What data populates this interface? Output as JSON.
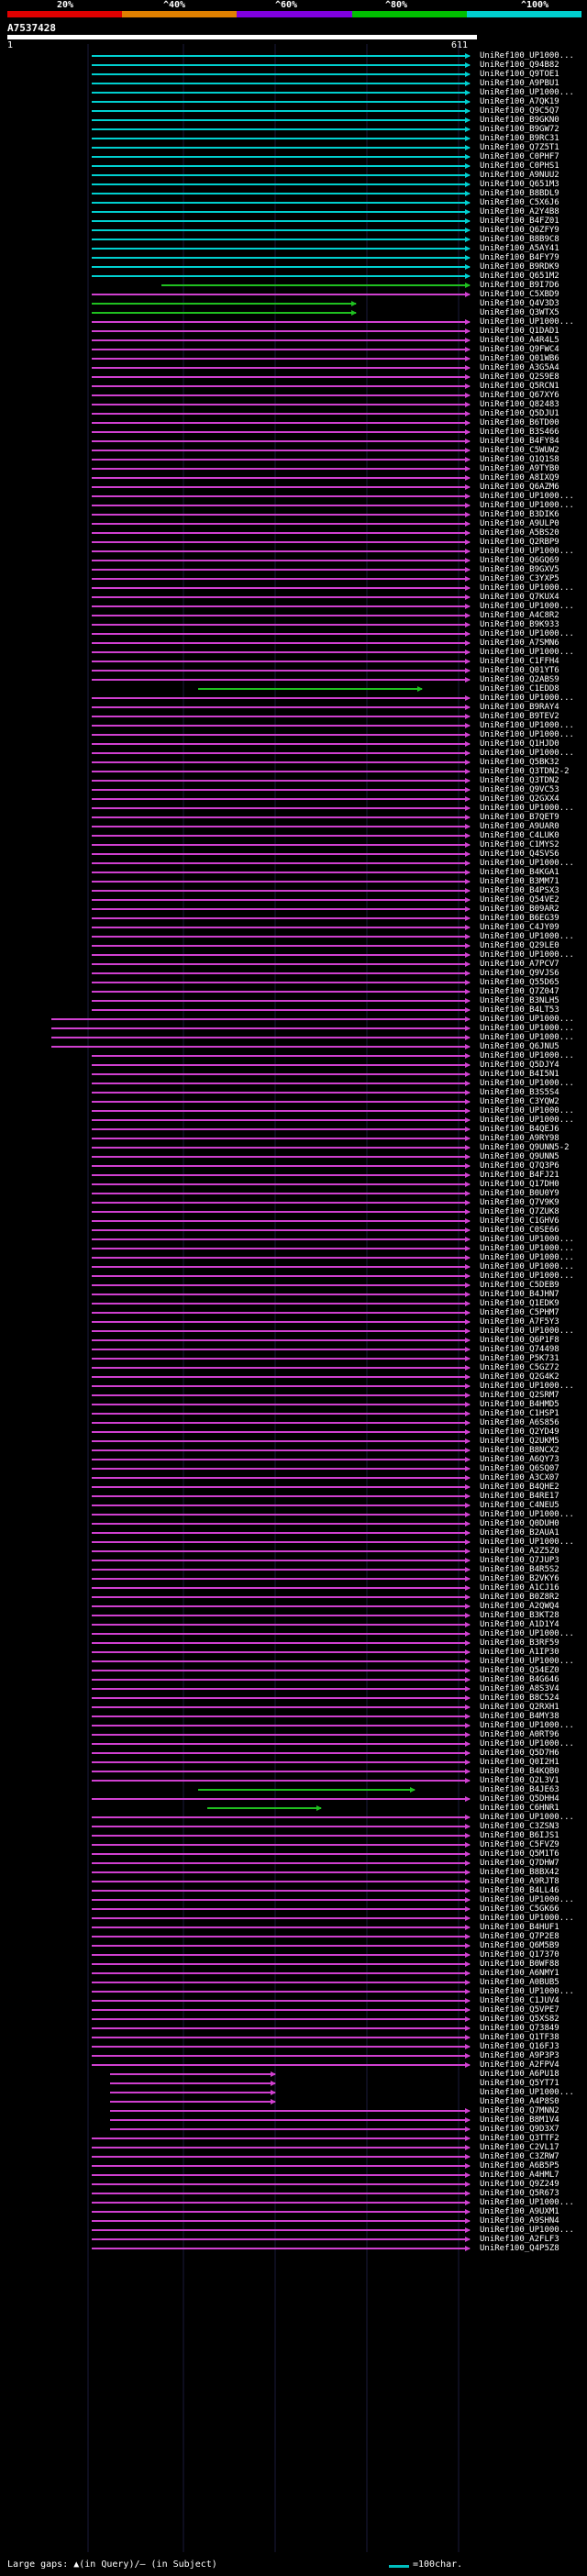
{
  "scale": {
    "labels": [
      "20%",
      "^40%",
      "^60%",
      "^80%",
      "^100%"
    ],
    "colors": [
      "#e00000",
      "#e08000",
      "#8000e0",
      "#00c000",
      "#00d0d0"
    ]
  },
  "query": {
    "accession": "A7537428",
    "start": "1",
    "end": "611"
  },
  "legend": {
    "gaps": "Large gaps: ▲(in Query)/— (in Subject)",
    "scale": "=100char."
  },
  "hits": [
    "UniRef100_UP1000...",
    "UniRef100_Q94B82",
    "UniRef100_Q9TOE1",
    "UniRef100_A9PBU1",
    "UniRef100_UP1000...",
    "UniRef100_A7QK19",
    "UniRef100_Q9C5Q7",
    "UniRef100_B9GKN0",
    "UniRef100_B9GW72",
    "UniRef100_B9RC31",
    "UniRef100_Q7Z5T1",
    "UniRef100_C0PHF7",
    "UniRef100_C0PHS1",
    "UniRef100_A9NUU2",
    "UniRef100_Q651M3",
    "UniRef100_B8BDL9",
    "UniRef100_C5X6J6",
    "UniRef100_A2Y4B8",
    "UniRef100_B4FZ01",
    "UniRef100_Q6ZFY9",
    "UniRef100_B8B9C8",
    "UniRef100_A5AY41",
    "UniRef100_B4FY79",
    "UniRef100_B9RDK9",
    "UniRef100_Q651M2",
    "UniRef100_B9I7D6",
    "UniRef100_C5XBD9",
    "UniRef100_Q4V3D3",
    "UniRef100_Q3WTX5",
    "UniRef100_UP1000...",
    "UniRef100_Q1DAD1",
    "UniRef100_A4R4L5",
    "UniRef100_Q9FWC4",
    "UniRef100_Q01WB6",
    "UniRef100_A3G5A4",
    "UniRef100_Q2S9E8",
    "UniRef100_Q5RCN1",
    "UniRef100_Q67XY6",
    "UniRef100_Q82483",
    "UniRef100_Q5DJU1",
    "UniRef100_B6TD00",
    "UniRef100_B3S466",
    "UniRef100_B4FY84",
    "UniRef100_C5WUW2",
    "UniRef100_Q1Q1S8",
    "UniRef100_A9TYB0",
    "UniRef100_A8IXQ9",
    "UniRef100_Q6AZM6",
    "UniRef100_UP1000...",
    "UniRef100_UP1000...",
    "UniRef100_B3DIK6",
    "UniRef100_A9ULP0",
    "UniRef100_A5BS20",
    "UniRef100_Q2RBP9",
    "UniRef100_UP1000...",
    "UniRef100_Q6GQ69",
    "UniRef100_B9GXV5",
    "UniRef100_C3YXP5",
    "UniRef100_UP1000...",
    "UniRef100_Q7KUX4",
    "UniRef100_UP1000...",
    "UniRef100_A4C8R2",
    "UniRef100_B9K933",
    "UniRef100_UP1000...",
    "UniRef100_A7SMN6",
    "UniRef100_UP1000...",
    "UniRef100_C1FFH4",
    "UniRef100_Q01YT6",
    "UniRef100_Q2ABS9",
    "UniRef100_C1EDD8",
    "UniRef100_UP1000...",
    "UniRef100_B9RAY4",
    "UniRef100_B9TEV2",
    "UniRef100_UP1000...",
    "UniRef100_UP1000...",
    "UniRef100_Q1HJD0",
    "UniRef100_UP1000...",
    "UniRef100_Q5BK32",
    "UniRef100_Q3TDN2-2",
    "UniRef100_Q3TDN2",
    "UniRef100_Q9VC53",
    "UniRef100_Q2GXX4",
    "UniRef100_UP1000...",
    "UniRef100_B7QET9",
    "UniRef100_A9UAR0",
    "UniRef100_C4LUK0",
    "UniRef100_C1MYS2",
    "UniRef100_Q4SVS6",
    "UniRef100_UP1000...",
    "UniRef100_B4KGA1",
    "UniRef100_B3MM71",
    "UniRef100_B4PSX3",
    "UniRef100_Q54VE2",
    "UniRef100_B09AR2",
    "UniRef100_B6EG39",
    "UniRef100_C4JY09",
    "UniRef100_UP1000...",
    "UniRef100_Q29LE0",
    "UniRef100_UP1000...",
    "UniRef100_A7PCV7",
    "UniRef100_Q9VJS6",
    "UniRef100_Q55D65",
    "UniRef100_Q7Z047",
    "UniRef100_B3NLH5",
    "UniRef100_B4LT53",
    "UniRef100_UP1000...",
    "UniRef100_UP1000...",
    "UniRef100_UP1000...",
    "UniRef100_Q6JNU5",
    "UniRef100_UP1000...",
    "UniRef100_Q5DJY4",
    "UniRef100_B4I5N1",
    "UniRef100_UP1000...",
    "UniRef100_B3S5S4",
    "UniRef100_C3YQW2",
    "UniRef100_UP1000...",
    "UniRef100_UP1000...",
    "UniRef100_B4QEJ6",
    "UniRef100_A9RY98",
    "UniRef100_Q9UNN5-2",
    "UniRef100_Q9UNN5",
    "UniRef100_Q7Q3P6",
    "UniRef100_B4FJ21",
    "UniRef100_Q17DH0",
    "UniRef100_B0U0Y9",
    "UniRef100_Q7V9K9",
    "UniRef100_Q7ZUK8",
    "UniRef100_C1GHV6",
    "UniRef100_C0SE66",
    "UniRef100_UP1000...",
    "UniRef100_UP1000...",
    "UniRef100_UP1000...",
    "UniRef100_UP1000...",
    "UniRef100_UP1000...",
    "UniRef100_C5DEB9",
    "UniRef100_B4JHN7",
    "UniRef100_Q1EDK9",
    "UniRef100_C5PHM7",
    "UniRef100_A7F5Y3",
    "UniRef100_UP1000...",
    "UniRef100_Q6P1F8",
    "UniRef100_Q74498",
    "UniRef100_P5K731",
    "UniRef100_C5GZ72",
    "UniRef100_Q2G4K2",
    "UniRef100_UP1000...",
    "UniRef100_Q2SRM7",
    "UniRef100_B4HMD5",
    "UniRef100_C1HSP1",
    "UniRef100_A6S856",
    "UniRef100_Q2YD49",
    "UniRef100_Q2UKM5",
    "UniRef100_B8NCX2",
    "UniRef100_A6QY73",
    "UniRef100_Q6SQ07",
    "UniRef100_A3CX07",
    "UniRef100_B4QHE2",
    "UniRef100_B4RE17",
    "UniRef100_C4NEU5",
    "UniRef100_UP1000...",
    "UniRef100_Q0DUH0",
    "UniRef100_B2AUA1",
    "UniRef100_UP1000...",
    "UniRef100_A2Z5Z0",
    "UniRef100_Q7JUP3",
    "UniRef100_B4R5S2",
    "UniRef100_B2VKY6",
    "UniRef100_A1CJ16",
    "UniRef100_B0Z8R2",
    "UniRef100_A2QWQ4",
    "UniRef100_B3KT28",
    "UniRef100_A1D1Y4",
    "UniRef100_UP1000...",
    "UniRef100_B3RF59",
    "UniRef100_A1IP30",
    "UniRef100_UP1000...",
    "UniRef100_Q54EZ0",
    "UniRef100_B4G646",
    "UniRef100_A8S3V4",
    "UniRef100_B8C524",
    "UniRef100_Q2RXH1",
    "UniRef100_B4MY38",
    "UniRef100_UP1000...",
    "UniRef100_A0RT96",
    "UniRef100_UP1000...",
    "UniRef100_Q5D7H6",
    "UniRef100_Q0I2H1",
    "UniRef100_B4KQB0",
    "UniRef100_Q2L3V1",
    "UniRef100_B4JE63",
    "UniRef100_Q5DHH4",
    "UniRef100_C6HNR1",
    "UniRef100_UP1000...",
    "UniRef100_C3ZSN3",
    "UniRef100_B6IJS1",
    "UniRef100_C5FVZ9",
    "UniRef100_Q5M1T6",
    "UniRef100_Q7DHW7",
    "UniRef100_B8BX42",
    "UniRef100_A9RJT8",
    "UniRef100_B4LL46",
    "UniRef100_UP1000...",
    "UniRef100_C5GK66",
    "UniRef100_UP1000...",
    "UniRef100_B4HUF1",
    "UniRef100_Q7P2E8",
    "UniRef100_Q6M5B9",
    "UniRef100_Q17370",
    "UniRef100_B0WF88",
    "UniRef100_A6NMY1",
    "UniRef100_A0BUB5",
    "UniRef100_UP1000...",
    "UniRef100_C1JUV4",
    "UniRef100_Q5VPE7",
    "UniRef100_Q5XS82",
    "UniRef100_Q73849",
    "UniRef100_Q1TF38",
    "UniRef100_Q16FJ3",
    "UniRef100_A9P3P3",
    "UniRef100_A2FPV4",
    "UniRef100_A6PU18",
    "UniRef100_Q5YT71",
    "UniRef100_UP1000...",
    "UniRef100_A4P8S0",
    "UniRef100_Q7MNN2",
    "UniRef100_B8M1V4",
    "UniRef100_Q9D3X7",
    "UniRef100_Q3TTF2",
    "UniRef100_C2VL17",
    "UniRef100_C3ZRW7",
    "UniRef100_A6B5P5",
    "UniRef100_A4HML7",
    "UniRef100_Q9Z249",
    "UniRef100_Q5R673",
    "UniRef100_UP1000...",
    "UniRef100_A9UXM1",
    "UniRef100_A9SHN4",
    "UniRef100_UP1000...",
    "UniRef100_A2FLF3",
    "UniRef100_Q4P5Z8"
  ]
}
